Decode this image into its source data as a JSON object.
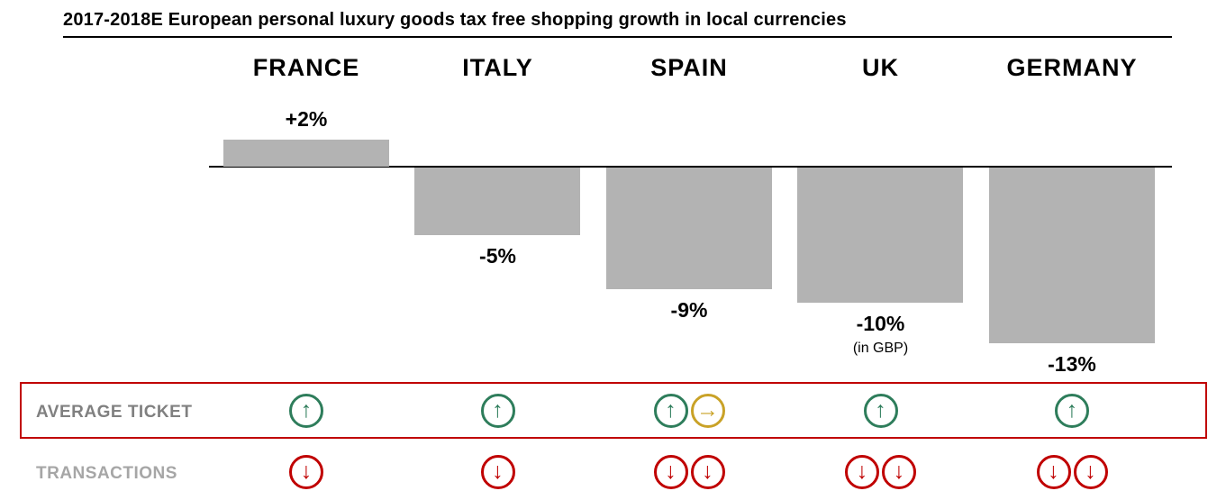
{
  "title": "2017-2018E European personal luxury goods tax free shopping growth in local currencies",
  "chart_data": {
    "type": "bar",
    "title": "2017-2018E European personal luxury goods tax free shopping growth in local currencies",
    "categories": [
      "FRANCE",
      "ITALY",
      "SPAIN",
      "UK",
      "GERMANY"
    ],
    "values": [
      2,
      -5,
      -9,
      -10,
      -13
    ],
    "labels": [
      "+2%",
      "-5%",
      "-9%",
      "-10%",
      "-13%"
    ],
    "sublabels": [
      "",
      "",
      "",
      "(in GBP)",
      ""
    ],
    "unit": "percent",
    "ylim": [
      -14,
      3
    ],
    "grid": false,
    "bar_color": "#b3b3b3"
  },
  "rows": {
    "average_ticket": {
      "label": "AVERAGE TICKET",
      "icons": [
        [
          "up"
        ],
        [
          "up"
        ],
        [
          "up",
          "right"
        ],
        [
          "up"
        ],
        [
          "up"
        ]
      ]
    },
    "transactions": {
      "label": "TRANSACTIONS",
      "icons": [
        [
          "down"
        ],
        [
          "down"
        ],
        [
          "down",
          "down"
        ],
        [
          "down",
          "down"
        ],
        [
          "down",
          "down"
        ]
      ]
    }
  },
  "glyphs": {
    "up": "↑",
    "right": "→",
    "down": "↓"
  },
  "colors": {
    "up": "#2e7d5b",
    "right": "#c9a227",
    "down": "#c00000",
    "bar": "#b3b3b3",
    "box_border": "#c00000",
    "ticket_label": "#808080",
    "transactions_label": "#a6a6a6"
  }
}
